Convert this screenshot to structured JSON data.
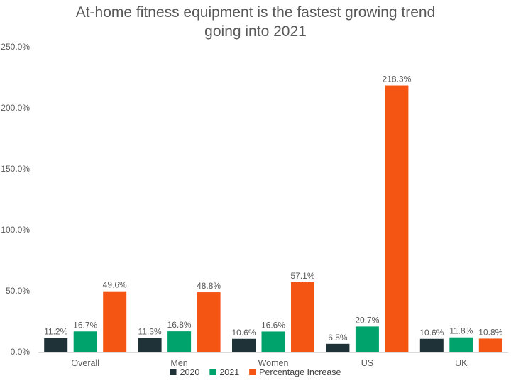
{
  "chart_data": {
    "type": "bar",
    "title_lines": [
      "At-home fitness equipment is the fastest growing trend",
      "going into 2021"
    ],
    "categories": [
      "Overall",
      "Men",
      "Women",
      "US",
      "UK"
    ],
    "series": [
      {
        "name": "2020",
        "color": "#1e3237",
        "values": [
          11.2,
          11.3,
          10.6,
          6.5,
          10.6
        ],
        "labels": [
          "11.2%",
          "11.3%",
          "10.6%",
          "6.5%",
          "10.6%"
        ]
      },
      {
        "name": "2021",
        "color": "#00a36c",
        "values": [
          16.7,
          16.8,
          16.6,
          20.7,
          11.8
        ],
        "labels": [
          "16.7%",
          "16.8%",
          "16.6%",
          "20.7%",
          "11.8%"
        ]
      },
      {
        "name": "Percentage Increase",
        "color": "#f45513",
        "values": [
          49.6,
          48.8,
          57.1,
          218.3,
          10.8
        ],
        "labels": [
          "49.6%",
          "48.8%",
          "57.1%",
          "218.3%",
          "10.8%"
        ]
      }
    ],
    "yticks": [
      "0.0%",
      "50.0%",
      "100.0%",
      "150.0%",
      "200.0%",
      "250.0%"
    ],
    "ylim": [
      0,
      250
    ],
    "grid": false,
    "legend_position": "bottom"
  }
}
